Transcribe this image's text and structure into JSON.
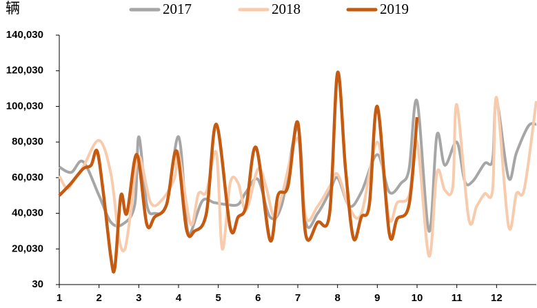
{
  "chart_data": {
    "type": "line",
    "ylabel": "辆",
    "xlim": [
      1,
      13
    ],
    "xticks": [
      1,
      2,
      3,
      4,
      5,
      6,
      7,
      8,
      9,
      10,
      11,
      12
    ],
    "ylim": [
      30,
      140030
    ],
    "yticks": [
      30,
      {
        "value": 20030,
        "label": "20,030"
      },
      {
        "value": 40030,
        "label": "40,030"
      },
      {
        "value": 60030,
        "label": "60,030"
      },
      {
        "value": 80030,
        "label": "80,030"
      },
      {
        "value": 100030,
        "label": "100,030"
      },
      {
        "value": 120030,
        "label": "120,030"
      },
      {
        "value": 140030,
        "label": "140,030"
      }
    ],
    "series": [
      {
        "name": "2017",
        "color": "#a6a6a6",
        "x": [
          1,
          1.3,
          1.6,
          2,
          2.3,
          2.6,
          2.9,
          3.0,
          3.2,
          3.4,
          3.7,
          4.0,
          4.2,
          4.3,
          4.6,
          4.9,
          5.2,
          5.5,
          5.7,
          6.0,
          6.3,
          6.6,
          7.0,
          7.2,
          7.5,
          7.8,
          8.0,
          8.3,
          8.6,
          9.0,
          9.3,
          9.6,
          9.8,
          10.0,
          10.3,
          10.5,
          10.7,
          11.0,
          11.2,
          11.4,
          11.7,
          11.9,
          12.0,
          12.3,
          12.5,
          12.8,
          13.0
        ],
        "values": [
          66000,
          63000,
          69000,
          50000,
          35000,
          34000,
          45000,
          83000,
          45000,
          40000,
          45000,
          83000,
          35000,
          29000,
          47000,
          46000,
          45000,
          45000,
          52000,
          59000,
          38000,
          45000,
          88000,
          35000,
          40000,
          52000,
          60000,
          44000,
          52000,
          73000,
          52000,
          57000,
          65000,
          103000,
          30000,
          84000,
          67000,
          80000,
          58000,
          58000,
          68000,
          70000,
          103000,
          60000,
          74000,
          89000,
          90000
        ]
      },
      {
        "name": "2018",
        "color": "#f8cbad",
        "x": [
          1,
          1.2,
          1.4,
          1.6,
          2.0,
          2.3,
          2.5,
          2.65,
          2.8,
          3.0,
          3.3,
          3.6,
          3.9,
          4.0,
          4.3,
          4.5,
          4.7,
          4.95,
          5.1,
          5.3,
          5.5,
          5.7,
          6.0,
          6.2,
          6.4,
          6.6,
          7.0,
          7.2,
          7.5,
          7.8,
          8.0,
          8.3,
          8.6,
          9.0,
          9.3,
          9.5,
          9.8,
          10.0,
          10.3,
          10.5,
          10.7,
          10.9,
          11.0,
          11.3,
          11.5,
          11.7,
          11.9,
          12.0,
          12.3,
          12.5,
          12.7,
          13.0
        ],
        "values": [
          61000,
          54000,
          60000,
          66000,
          81000,
          62000,
          26000,
          20000,
          41000,
          72000,
          46000,
          48000,
          60000,
          74000,
          34000,
          51000,
          52000,
          74000,
          20000,
          57000,
          57000,
          42000,
          65000,
          55000,
          38000,
          50000,
          82000,
          38000,
          44000,
          55000,
          62000,
          43000,
          40000,
          80000,
          37000,
          46000,
          50000,
          80000,
          16000,
          63000,
          53000,
          55000,
          101000,
          37000,
          44000,
          51000,
          53000,
          105000,
          33000,
          51000,
          54000,
          103000
        ]
      },
      {
        "name": "2019",
        "color": "#c55a11",
        "x": [
          1,
          1.3,
          1.6,
          1.8,
          1.95,
          2.1,
          2.3,
          2.4,
          2.55,
          2.7,
          2.95,
          3.2,
          3.4,
          3.7,
          3.95,
          4.2,
          4.4,
          4.7,
          4.95,
          5.3,
          5.5,
          5.7,
          5.95,
          6.3,
          6.5,
          6.75,
          7.0,
          7.2,
          7.5,
          7.8,
          8.0,
          8.2,
          8.4,
          8.6,
          8.8,
          9.0,
          9.3,
          9.5,
          9.8,
          10.0
        ],
        "values": [
          50000,
          57000,
          65000,
          67000,
          75000,
          53000,
          15000,
          10000,
          50000,
          40000,
          73000,
          34000,
          38000,
          45000,
          75000,
          31000,
          30000,
          40000,
          90000,
          32000,
          38000,
          44000,
          77000,
          25000,
          50000,
          55000,
          91000,
          28000,
          35000,
          40000,
          119000,
          65000,
          26000,
          38000,
          45000,
          100000,
          29000,
          37000,
          45000,
          94000
        ]
      }
    ]
  }
}
